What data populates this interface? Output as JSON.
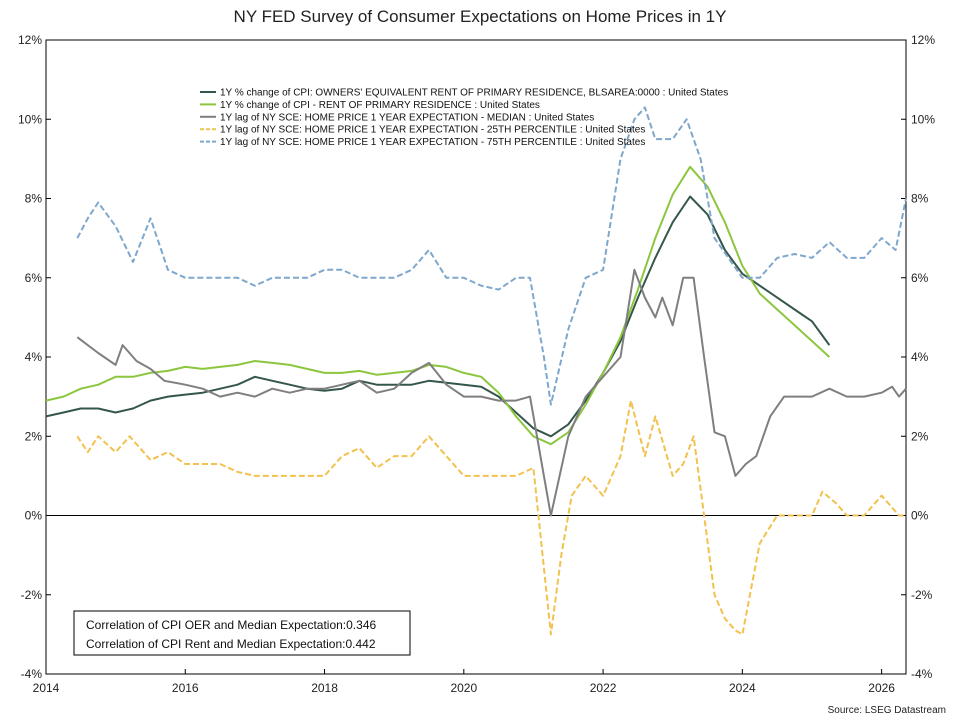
{
  "chart_data": {
    "type": "line",
    "title": "NY FED Survey of Consumer Expectations on Home Prices in 1Y",
    "source": "Source: LSEG Datastream",
    "xlim": [
      2014.0,
      2026.35
    ],
    "ylim": [
      -4,
      12
    ],
    "x_ticks": [
      2014,
      2016,
      2018,
      2020,
      2022,
      2024,
      2026
    ],
    "y_ticks": [
      -4,
      -2,
      0,
      2,
      4,
      6,
      8,
      10,
      12
    ],
    "y_tick_format": "%",
    "zero_line": true,
    "legend_position": "top-center",
    "notes": [
      "Correlation of CPI OER and Median Expectation:0.346",
      "Correlation of CPI Rent and Median Expectation:0.442"
    ],
    "series": [
      {
        "name": "1Y % change of CPI: OWNERS' EQUIVALENT RENT OF PRIMARY RESIDENCE, BLSAREA:0000 : United States",
        "color": "#34574a",
        "dash": "solid",
        "points": [
          [
            2014.0,
            2.5
          ],
          [
            2014.25,
            2.6
          ],
          [
            2014.5,
            2.7
          ],
          [
            2014.75,
            2.7
          ],
          [
            2015.0,
            2.6
          ],
          [
            2015.25,
            2.7
          ],
          [
            2015.5,
            2.9
          ],
          [
            2015.75,
            3.0
          ],
          [
            2016.0,
            3.05
          ],
          [
            2016.25,
            3.1
          ],
          [
            2016.5,
            3.2
          ],
          [
            2016.75,
            3.3
          ],
          [
            2017.0,
            3.5
          ],
          [
            2017.25,
            3.4
          ],
          [
            2017.5,
            3.3
          ],
          [
            2017.75,
            3.2
          ],
          [
            2018.0,
            3.15
          ],
          [
            2018.25,
            3.2
          ],
          [
            2018.5,
            3.4
          ],
          [
            2018.75,
            3.3
          ],
          [
            2019.0,
            3.3
          ],
          [
            2019.25,
            3.3
          ],
          [
            2019.5,
            3.4
          ],
          [
            2019.75,
            3.35
          ],
          [
            2020.0,
            3.3
          ],
          [
            2020.25,
            3.25
          ],
          [
            2020.5,
            3.0
          ],
          [
            2020.75,
            2.6
          ],
          [
            2021.0,
            2.2
          ],
          [
            2021.25,
            2.0
          ],
          [
            2021.5,
            2.3
          ],
          [
            2021.75,
            2.9
          ],
          [
            2022.0,
            3.6
          ],
          [
            2022.25,
            4.4
          ],
          [
            2022.5,
            5.5
          ],
          [
            2022.75,
            6.5
          ],
          [
            2023.0,
            7.4
          ],
          [
            2023.25,
            8.05
          ],
          [
            2023.5,
            7.6
          ],
          [
            2023.75,
            6.7
          ],
          [
            2024.0,
            6.1
          ],
          [
            2024.25,
            5.8
          ],
          [
            2024.5,
            5.5
          ],
          [
            2024.75,
            5.2
          ],
          [
            2025.0,
            4.9
          ],
          [
            2025.25,
            4.3
          ]
        ]
      },
      {
        "name": "1Y % change of CPI - RENT OF PRIMARY RESIDENCE : United States",
        "color": "#8cc63f",
        "dash": "solid",
        "points": [
          [
            2014.0,
            2.9
          ],
          [
            2014.25,
            3.0
          ],
          [
            2014.5,
            3.2
          ],
          [
            2014.75,
            3.3
          ],
          [
            2015.0,
            3.5
          ],
          [
            2015.25,
            3.5
          ],
          [
            2015.5,
            3.6
          ],
          [
            2015.75,
            3.65
          ],
          [
            2016.0,
            3.75
          ],
          [
            2016.25,
            3.7
          ],
          [
            2016.5,
            3.75
          ],
          [
            2016.75,
            3.8
          ],
          [
            2017.0,
            3.9
          ],
          [
            2017.25,
            3.85
          ],
          [
            2017.5,
            3.8
          ],
          [
            2017.75,
            3.7
          ],
          [
            2018.0,
            3.6
          ],
          [
            2018.25,
            3.6
          ],
          [
            2018.5,
            3.65
          ],
          [
            2018.75,
            3.55
          ],
          [
            2019.0,
            3.6
          ],
          [
            2019.25,
            3.65
          ],
          [
            2019.5,
            3.8
          ],
          [
            2019.75,
            3.75
          ],
          [
            2020.0,
            3.6
          ],
          [
            2020.25,
            3.5
          ],
          [
            2020.5,
            3.1
          ],
          [
            2020.75,
            2.5
          ],
          [
            2021.0,
            2.0
          ],
          [
            2021.25,
            1.8
          ],
          [
            2021.5,
            2.1
          ],
          [
            2021.75,
            2.8
          ],
          [
            2022.0,
            3.6
          ],
          [
            2022.25,
            4.5
          ],
          [
            2022.5,
            5.7
          ],
          [
            2022.75,
            7.0
          ],
          [
            2023.0,
            8.1
          ],
          [
            2023.25,
            8.8
          ],
          [
            2023.5,
            8.3
          ],
          [
            2023.75,
            7.4
          ],
          [
            2024.0,
            6.3
          ],
          [
            2024.25,
            5.6
          ],
          [
            2024.5,
            5.2
          ],
          [
            2024.75,
            4.8
          ],
          [
            2025.0,
            4.4
          ],
          [
            2025.25,
            4.0
          ]
        ]
      },
      {
        "name": "1Y lag of NY SCE: HOME PRICE 1 YEAR EXPECTATION - MEDIAN : United States",
        "color": "#7f7f7f",
        "dash": "solid",
        "points": [
          [
            2014.45,
            4.5
          ],
          [
            2014.75,
            4.1
          ],
          [
            2015.0,
            3.8
          ],
          [
            2015.1,
            4.3
          ],
          [
            2015.3,
            3.9
          ],
          [
            2015.5,
            3.7
          ],
          [
            2015.7,
            3.4
          ],
          [
            2016.0,
            3.3
          ],
          [
            2016.25,
            3.2
          ],
          [
            2016.5,
            3.0
          ],
          [
            2016.75,
            3.1
          ],
          [
            2017.0,
            3.0
          ],
          [
            2017.25,
            3.2
          ],
          [
            2017.5,
            3.1
          ],
          [
            2017.75,
            3.2
          ],
          [
            2018.0,
            3.2
          ],
          [
            2018.25,
            3.3
          ],
          [
            2018.5,
            3.4
          ],
          [
            2018.75,
            3.1
          ],
          [
            2019.0,
            3.2
          ],
          [
            2019.25,
            3.6
          ],
          [
            2019.5,
            3.85
          ],
          [
            2019.75,
            3.3
          ],
          [
            2020.0,
            3.0
          ],
          [
            2020.25,
            3.0
          ],
          [
            2020.5,
            2.9
          ],
          [
            2020.75,
            2.9
          ],
          [
            2020.95,
            3.0
          ],
          [
            2021.15,
            1.0
          ],
          [
            2021.25,
            0.0
          ],
          [
            2021.5,
            2.0
          ],
          [
            2021.75,
            3.0
          ],
          [
            2022.0,
            3.5
          ],
          [
            2022.25,
            4.0
          ],
          [
            2022.45,
            6.2
          ],
          [
            2022.6,
            5.5
          ],
          [
            2022.75,
            5.0
          ],
          [
            2022.85,
            5.5
          ],
          [
            2023.0,
            4.8
          ],
          [
            2023.15,
            6.0
          ],
          [
            2023.3,
            6.0
          ],
          [
            2023.45,
            4.0
          ],
          [
            2023.6,
            2.1
          ],
          [
            2023.75,
            2.0
          ],
          [
            2023.9,
            1.0
          ],
          [
            2024.05,
            1.3
          ],
          [
            2024.2,
            1.5
          ],
          [
            2024.4,
            2.5
          ],
          [
            2024.6,
            3.0
          ],
          [
            2024.8,
            3.0
          ],
          [
            2025.0,
            3.0
          ],
          [
            2025.25,
            3.2
          ],
          [
            2025.5,
            3.0
          ],
          [
            2025.75,
            3.0
          ],
          [
            2026.0,
            3.1
          ],
          [
            2026.15,
            3.25
          ],
          [
            2026.25,
            3.0
          ],
          [
            2026.35,
            3.2
          ]
        ]
      },
      {
        "name": "1Y lag of NY SCE: HOME PRICE 1 YEAR EXPECTATION - 25TH PERCENTILE : United States",
        "color": "#f2c14e",
        "dash": "dashed",
        "points": [
          [
            2014.45,
            2.0
          ],
          [
            2014.6,
            1.6
          ],
          [
            2014.75,
            2.0
          ],
          [
            2015.0,
            1.6
          ],
          [
            2015.2,
            2.0
          ],
          [
            2015.5,
            1.4
          ],
          [
            2015.75,
            1.6
          ],
          [
            2016.0,
            1.3
          ],
          [
            2016.25,
            1.3
          ],
          [
            2016.5,
            1.3
          ],
          [
            2016.75,
            1.1
          ],
          [
            2017.0,
            1.0
          ],
          [
            2017.25,
            1.0
          ],
          [
            2017.5,
            1.0
          ],
          [
            2017.75,
            1.0
          ],
          [
            2018.0,
            1.0
          ],
          [
            2018.25,
            1.5
          ],
          [
            2018.5,
            1.7
          ],
          [
            2018.75,
            1.2
          ],
          [
            2019.0,
            1.5
          ],
          [
            2019.25,
            1.5
          ],
          [
            2019.5,
            2.0
          ],
          [
            2019.75,
            1.5
          ],
          [
            2020.0,
            1.0
          ],
          [
            2020.25,
            1.0
          ],
          [
            2020.5,
            1.0
          ],
          [
            2020.75,
            1.0
          ],
          [
            2021.0,
            1.2
          ],
          [
            2021.25,
            -3.0
          ],
          [
            2021.4,
            -1.0
          ],
          [
            2021.55,
            0.5
          ],
          [
            2021.75,
            1.0
          ],
          [
            2022.0,
            0.5
          ],
          [
            2022.25,
            1.5
          ],
          [
            2022.4,
            2.9
          ],
          [
            2022.6,
            1.5
          ],
          [
            2022.75,
            2.5
          ],
          [
            2023.0,
            1.0
          ],
          [
            2023.15,
            1.3
          ],
          [
            2023.3,
            2.0
          ],
          [
            2023.45,
            0.0
          ],
          [
            2023.6,
            -2.0
          ],
          [
            2023.75,
            -2.6
          ],
          [
            2023.9,
            -2.9
          ],
          [
            2024.0,
            -3.0
          ],
          [
            2024.25,
            -0.7
          ],
          [
            2024.5,
            0.0
          ],
          [
            2024.75,
            0.0
          ],
          [
            2025.0,
            0.0
          ],
          [
            2025.15,
            0.6
          ],
          [
            2025.35,
            0.3
          ],
          [
            2025.5,
            0.0
          ],
          [
            2025.75,
            0.0
          ],
          [
            2026.0,
            0.5
          ],
          [
            2026.25,
            0.0
          ],
          [
            2026.35,
            0.0
          ]
        ]
      },
      {
        "name": "1Y lag of NY SCE: HOME PRICE 1 YEAR EXPECTATION - 75TH PERCENTILE : United States",
        "color": "#7fa7cc",
        "dash": "dashed",
        "points": [
          [
            2014.45,
            7.0
          ],
          [
            2014.6,
            7.5
          ],
          [
            2014.75,
            7.9
          ],
          [
            2015.0,
            7.3
          ],
          [
            2015.25,
            6.4
          ],
          [
            2015.5,
            7.5
          ],
          [
            2015.75,
            6.2
          ],
          [
            2016.0,
            6.0
          ],
          [
            2016.25,
            6.0
          ],
          [
            2016.5,
            6.0
          ],
          [
            2016.75,
            6.0
          ],
          [
            2017.0,
            5.8
          ],
          [
            2017.25,
            6.0
          ],
          [
            2017.5,
            6.0
          ],
          [
            2017.75,
            6.0
          ],
          [
            2018.0,
            6.2
          ],
          [
            2018.25,
            6.2
          ],
          [
            2018.5,
            6.0
          ],
          [
            2018.75,
            6.0
          ],
          [
            2019.0,
            6.0
          ],
          [
            2019.25,
            6.2
          ],
          [
            2019.5,
            6.7
          ],
          [
            2019.75,
            6.0
          ],
          [
            2020.0,
            6.0
          ],
          [
            2020.25,
            5.8
          ],
          [
            2020.5,
            5.7
          ],
          [
            2020.75,
            6.0
          ],
          [
            2020.95,
            6.0
          ],
          [
            2021.15,
            4.0
          ],
          [
            2021.25,
            2.8
          ],
          [
            2021.5,
            4.7
          ],
          [
            2021.75,
            6.0
          ],
          [
            2022.0,
            6.2
          ],
          [
            2022.25,
            9.0
          ],
          [
            2022.45,
            10.0
          ],
          [
            2022.6,
            10.3
          ],
          [
            2022.75,
            9.5
          ],
          [
            2023.0,
            9.5
          ],
          [
            2023.2,
            10.0
          ],
          [
            2023.4,
            9.0
          ],
          [
            2023.6,
            7.0
          ],
          [
            2023.8,
            6.5
          ],
          [
            2024.0,
            6.0
          ],
          [
            2024.25,
            6.0
          ],
          [
            2024.5,
            6.5
          ],
          [
            2024.75,
            6.6
          ],
          [
            2025.0,
            6.5
          ],
          [
            2025.25,
            6.9
          ],
          [
            2025.5,
            6.5
          ],
          [
            2025.75,
            6.5
          ],
          [
            2026.0,
            7.0
          ],
          [
            2026.2,
            6.7
          ],
          [
            2026.35,
            8.0
          ]
        ]
      }
    ]
  }
}
